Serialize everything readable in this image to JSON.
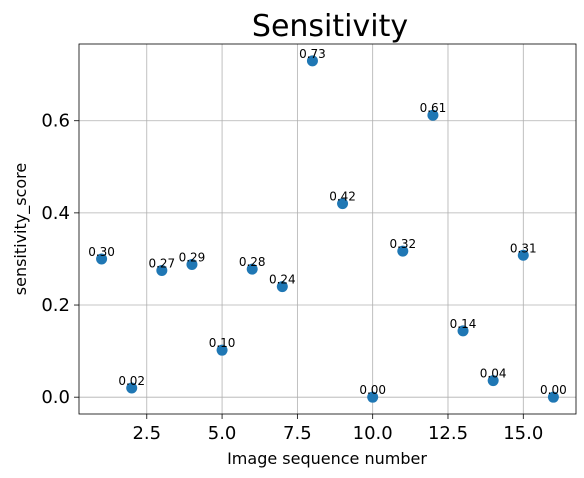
{
  "chart_data": {
    "type": "scatter",
    "title": "Sensitivity",
    "xlabel": "Image sequence number",
    "ylabel": "sensitivity_score",
    "xlim": [
      0.25,
      16.75
    ],
    "ylim": [
      -0.0365,
      0.7665
    ],
    "xticks": [
      2.5,
      5.0,
      7.5,
      10.0,
      12.5,
      15.0
    ],
    "xtick_labels": [
      "2.5",
      "5.0",
      "7.5",
      "10.0",
      "12.5",
      "15.0"
    ],
    "yticks": [
      0.0,
      0.2,
      0.4,
      0.6
    ],
    "ytick_labels": [
      "0.0",
      "0.2",
      "0.4",
      "0.6"
    ],
    "grid": true,
    "point_color": "#1f77b4",
    "x": [
      1,
      2,
      3,
      4,
      5,
      6,
      7,
      8,
      9,
      10,
      11,
      12,
      13,
      14,
      15,
      16
    ],
    "y": [
      0.3,
      0.02,
      0.275,
      0.288,
      0.102,
      0.278,
      0.24,
      0.73,
      0.42,
      0.0,
      0.317,
      0.612,
      0.144,
      0.036,
      0.308,
      0.0
    ],
    "labels": [
      "0.30",
      "0.02",
      "0.27",
      "0.29",
      "0.10",
      "0.28",
      "0.24",
      "0.73",
      "0.42",
      "0.00",
      "0.32",
      "0.61",
      "0.14",
      "0.04",
      "0.31",
      "0.00"
    ]
  }
}
